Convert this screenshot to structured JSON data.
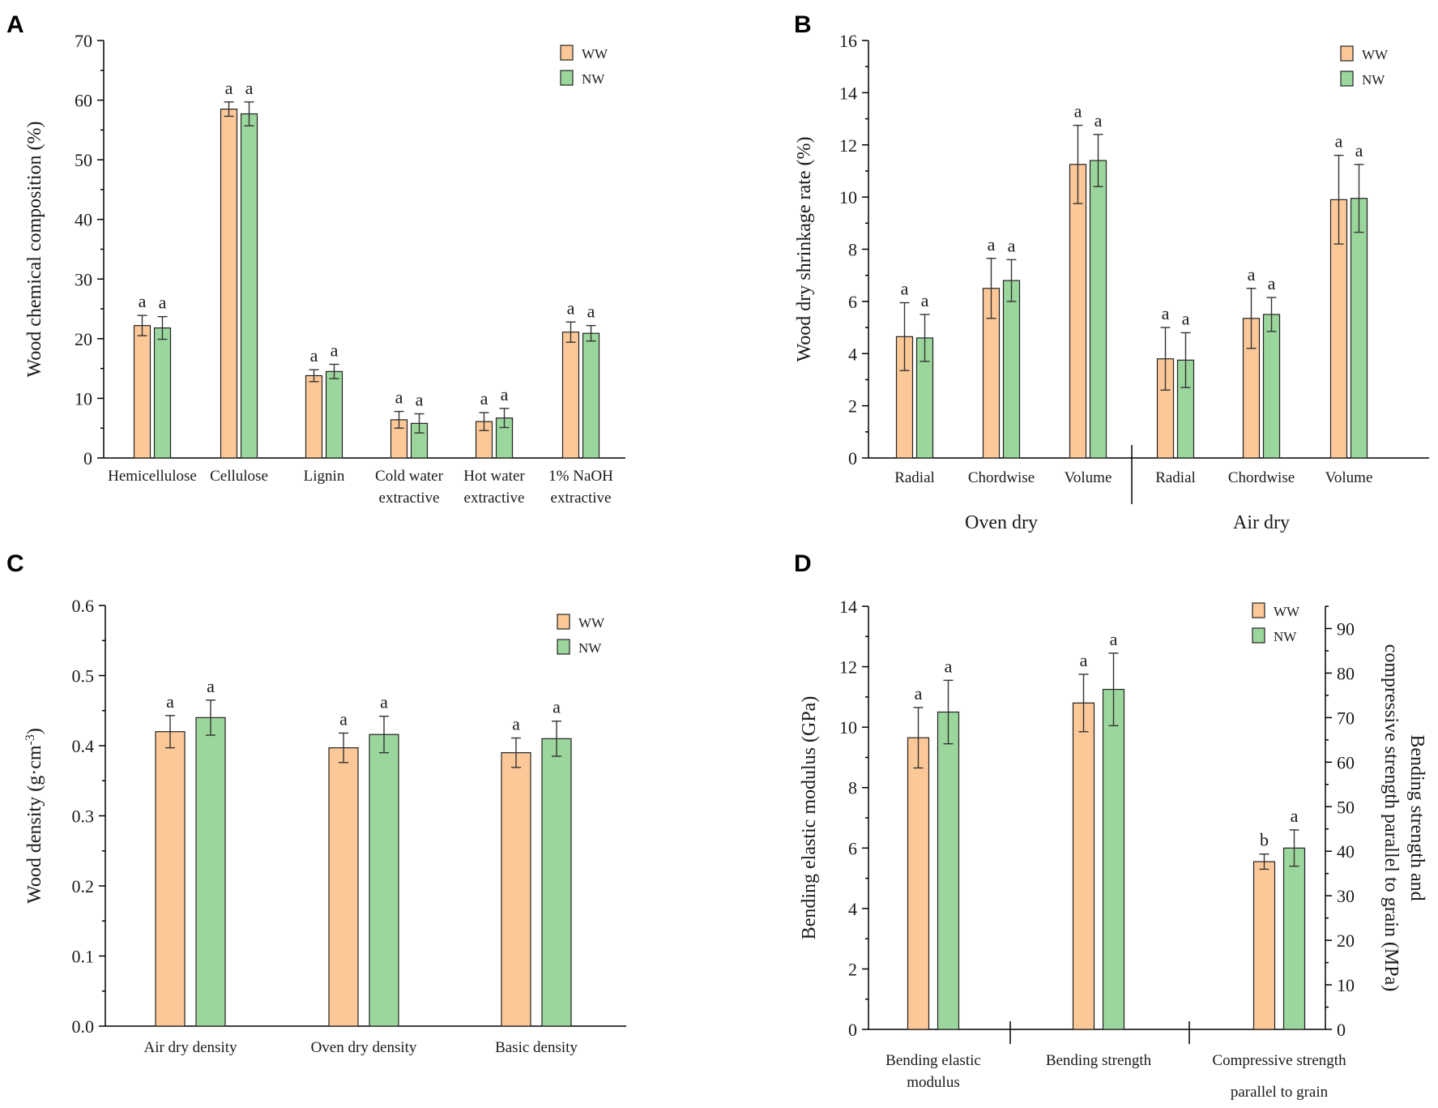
{
  "figure": {
    "panels": [
      "A",
      "B",
      "C",
      "D"
    ],
    "colors": {
      "WW": "#FDC898",
      "NW": "#9BD69C"
    }
  },
  "chart_data": [
    {
      "panel": "A",
      "type": "bar",
      "ylabel": "Wood chemical composition (%)",
      "ylim": [
        0,
        70
      ],
      "yticks": [
        0,
        10,
        20,
        30,
        40,
        50,
        60,
        70
      ],
      "categories": [
        [
          "Hemicellulose"
        ],
        [
          "Cellulose"
        ],
        [
          "Lignin"
        ],
        [
          "Cold water",
          "extractive"
        ],
        [
          "Hot water",
          "extractive"
        ],
        [
          "1% NaOH",
          "extractive"
        ]
      ],
      "series": [
        {
          "name": "WW",
          "values": [
            22.2,
            58.5,
            13.8,
            6.4,
            6.1,
            21.1
          ],
          "errors": [
            1.7,
            1.2,
            1.0,
            1.4,
            1.5,
            1.7
          ],
          "letters": [
            "a",
            "a",
            "a",
            "a",
            "a",
            "a"
          ]
        },
        {
          "name": "NW",
          "values": [
            21.8,
            57.7,
            14.5,
            5.8,
            6.7,
            20.9
          ],
          "errors": [
            1.9,
            2.0,
            1.2,
            1.6,
            1.6,
            1.3
          ],
          "letters": [
            "a",
            "a",
            "a",
            "a",
            "a",
            "a"
          ]
        }
      ],
      "legend": [
        "WW",
        "NW"
      ]
    },
    {
      "panel": "B",
      "type": "bar",
      "ylabel": "Wood dry shrinkage rate (%)",
      "ylim": [
        0,
        16
      ],
      "yticks": [
        0,
        2,
        4,
        6,
        8,
        10,
        12,
        14,
        16
      ],
      "categories": [
        [
          "Radial"
        ],
        [
          "Chordwise"
        ],
        [
          "Volume"
        ],
        [
          "Radial"
        ],
        [
          "Chordwise"
        ],
        [
          "Volume"
        ]
      ],
      "groups": [
        "Oven dry",
        "Air dry"
      ],
      "series": [
        {
          "name": "WW",
          "values": [
            4.65,
            6.5,
            11.25,
            3.8,
            5.35,
            9.9
          ],
          "errors": [
            1.3,
            1.15,
            1.5,
            1.2,
            1.15,
            1.7
          ],
          "letters": [
            "a",
            "a",
            "a",
            "a",
            "a",
            "a"
          ]
        },
        {
          "name": "NW",
          "values": [
            4.6,
            6.8,
            11.4,
            3.75,
            5.5,
            9.95
          ],
          "errors": [
            0.9,
            0.8,
            1.0,
            1.05,
            0.65,
            1.3
          ],
          "letters": [
            "a",
            "a",
            "a",
            "a",
            "a",
            "a"
          ]
        }
      ],
      "legend": [
        "WW",
        "NW"
      ]
    },
    {
      "panel": "C",
      "type": "bar",
      "ylabel": "Wood density (g·cm",
      "ylabel_sup": "-3",
      "ylabel_end": ")",
      "ylim": [
        0,
        0.6
      ],
      "yticks": [
        "0.0",
        "0.1",
        "0.2",
        "0.3",
        "0.4",
        "0.5",
        "0.6"
      ],
      "categories": [
        [
          "Air dry density"
        ],
        [
          "Oven dry density"
        ],
        [
          "Basic density"
        ]
      ],
      "series": [
        {
          "name": "WW",
          "values": [
            0.42,
            0.397,
            0.39
          ],
          "errors": [
            0.023,
            0.021,
            0.021
          ],
          "letters": [
            "a",
            "a",
            "a"
          ]
        },
        {
          "name": "NW",
          "values": [
            0.44,
            0.416,
            0.41
          ],
          "errors": [
            0.025,
            0.026,
            0.025
          ],
          "letters": [
            "a",
            "a",
            "a"
          ]
        }
      ],
      "legend": [
        "WW",
        "NW"
      ]
    },
    {
      "panel": "D",
      "type": "bar",
      "ylabel": "Bending elastic modulus (GPa)",
      "ylabel_right_line1": "Bending strength and",
      "ylabel_right_line2": "compressive strength parallel to grain (MPa)",
      "ylim": [
        0,
        14
      ],
      "yticks": [
        0,
        2,
        4,
        6,
        8,
        10,
        12,
        14
      ],
      "ylim_right": [
        0,
        95
      ],
      "yticks_right": [
        0,
        10,
        20,
        30,
        40,
        50,
        60,
        70,
        80,
        90
      ],
      "categories": [
        [
          "Bending elastic",
          "modulus"
        ],
        [
          "Bending strength"
        ],
        [
          "Compressive strength",
          "parallel to grain"
        ]
      ],
      "series": [
        {
          "name": "WW",
          "values": [
            9.65,
            10.8,
            5.55
          ],
          "errors": [
            1.0,
            0.95,
            0.25
          ],
          "letters": [
            "a",
            "a",
            "b"
          ]
        },
        {
          "name": "NW",
          "values": [
            10.5,
            11.25,
            6.0
          ],
          "errors": [
            1.05,
            1.2,
            0.6
          ],
          "letters": [
            "a",
            "a",
            "a"
          ]
        }
      ],
      "legend": [
        "WW",
        "NW"
      ]
    }
  ]
}
